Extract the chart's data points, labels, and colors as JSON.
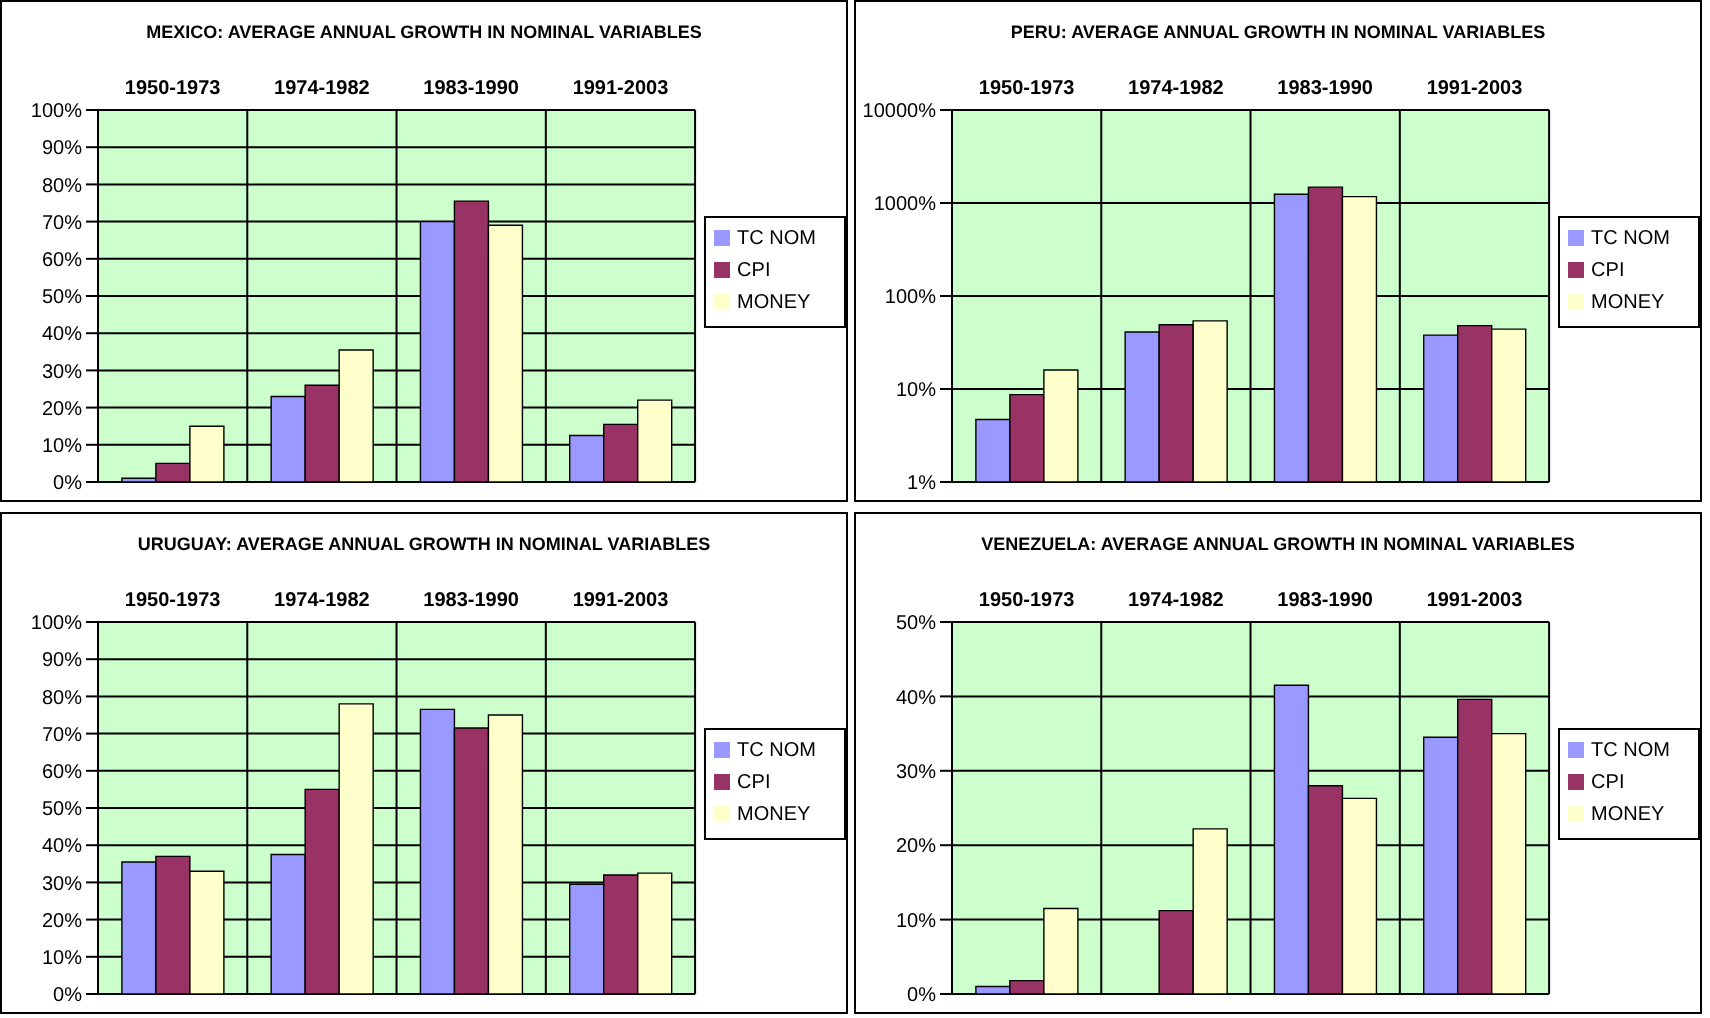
{
  "chart_data": [
    {
      "type": "bar",
      "title": "MEXICO: AVERAGE ANNUAL GROWTH IN NOMINAL VARIABLES",
      "categories": [
        "1950-1973",
        "1974-1982",
        "1983-1990",
        "1991-2003"
      ],
      "series": [
        {
          "name": "TC NOM",
          "color": "#9999ff",
          "values": [
            1,
            23,
            70,
            12.5
          ]
        },
        {
          "name": "CPI",
          "color": "#993366",
          "values": [
            5,
            26,
            75.5,
            15.5
          ]
        },
        {
          "name": "MONEY",
          "color": "#ffffcc",
          "values": [
            15,
            35.5,
            69,
            22
          ]
        }
      ],
      "ylim": [
        0,
        100
      ],
      "yticks": [
        {
          "value": 0,
          "label": "0%"
        },
        {
          "value": 10,
          "label": "10%"
        },
        {
          "value": 20,
          "label": "20%"
        },
        {
          "value": 30,
          "label": "30%"
        },
        {
          "value": 40,
          "label": "40%"
        },
        {
          "value": 50,
          "label": "50%"
        },
        {
          "value": 60,
          "label": "60%"
        },
        {
          "value": 70,
          "label": "70%"
        },
        {
          "value": 80,
          "label": "80%"
        },
        {
          "value": 90,
          "label": "90%"
        },
        {
          "value": 100,
          "label": "100%"
        }
      ],
      "grid": true,
      "legend": "right"
    },
    {
      "type": "bar",
      "title": "PERU: AVERAGE ANNUAL GROWTH IN NOMINAL VARIABLES",
      "categories": [
        "1950-1973",
        "1974-1982",
        "1983-1990",
        "1991-2003"
      ],
      "series": [
        {
          "name": "TC NOM",
          "color": "#9999ff",
          "values": [
            4.7,
            41,
            1240,
            38
          ]
        },
        {
          "name": "CPI",
          "color": "#993366",
          "values": [
            8.7,
            49,
            1480,
            48
          ]
        },
        {
          "name": "MONEY",
          "color": "#ffffcc",
          "values": [
            16,
            54,
            1170,
            44
          ]
        }
      ],
      "ylim": [
        1,
        10000
      ],
      "yticks": [
        {
          "value": 1,
          "label": "1%"
        },
        {
          "value": 10,
          "label": "10%"
        },
        {
          "value": 100,
          "label": "100%"
        },
        {
          "value": 1000,
          "label": "1000%"
        },
        {
          "value": 10000,
          "label": "10000%"
        }
      ],
      "log": true,
      "grid": true,
      "legend": "right"
    },
    {
      "type": "bar",
      "title": "URUGUAY: AVERAGE ANNUAL GROWTH IN NOMINAL VARIABLES",
      "categories": [
        "1950-1973",
        "1974-1982",
        "1983-1990",
        "1991-2003"
      ],
      "series": [
        {
          "name": "TC NOM",
          "color": "#9999ff",
          "values": [
            35.5,
            37.5,
            76.5,
            29.5
          ]
        },
        {
          "name": "CPI",
          "color": "#993366",
          "values": [
            37,
            55,
            71.5,
            32
          ]
        },
        {
          "name": "MONEY",
          "color": "#ffffcc",
          "values": [
            33,
            78,
            75,
            32.5
          ]
        }
      ],
      "ylim": [
        0,
        100
      ],
      "yticks": [
        {
          "value": 0,
          "label": "0%"
        },
        {
          "value": 10,
          "label": "10%"
        },
        {
          "value": 20,
          "label": "20%"
        },
        {
          "value": 30,
          "label": "30%"
        },
        {
          "value": 40,
          "label": "40%"
        },
        {
          "value": 50,
          "label": "50%"
        },
        {
          "value": 60,
          "label": "60%"
        },
        {
          "value": 70,
          "label": "70%"
        },
        {
          "value": 80,
          "label": "80%"
        },
        {
          "value": 90,
          "label": "90%"
        },
        {
          "value": 100,
          "label": "100%"
        }
      ],
      "grid": true,
      "legend": "right"
    },
    {
      "type": "bar",
      "title": "VENEZUELA: AVERAGE ANNUAL GROWTH IN NOMINAL VARIABLES",
      "categories": [
        "1950-1973",
        "1974-1982",
        "1983-1990",
        "1991-2003"
      ],
      "series": [
        {
          "name": "TC NOM",
          "color": "#9999ff",
          "values": [
            1,
            0,
            41.5,
            34.5
          ]
        },
        {
          "name": "CPI",
          "color": "#993366",
          "values": [
            1.8,
            11.2,
            28,
            39.6
          ]
        },
        {
          "name": "MONEY",
          "color": "#ffffcc",
          "values": [
            11.5,
            22.2,
            26.3,
            35
          ]
        }
      ],
      "ylim": [
        0,
        50
      ],
      "yticks": [
        {
          "value": 0,
          "label": "0%"
        },
        {
          "value": 10,
          "label": "10%"
        },
        {
          "value": 20,
          "label": "20%"
        },
        {
          "value": 30,
          "label": "30%"
        },
        {
          "value": 40,
          "label": "40%"
        },
        {
          "value": 50,
          "label": "50%"
        }
      ],
      "grid": true,
      "legend": "right"
    }
  ]
}
